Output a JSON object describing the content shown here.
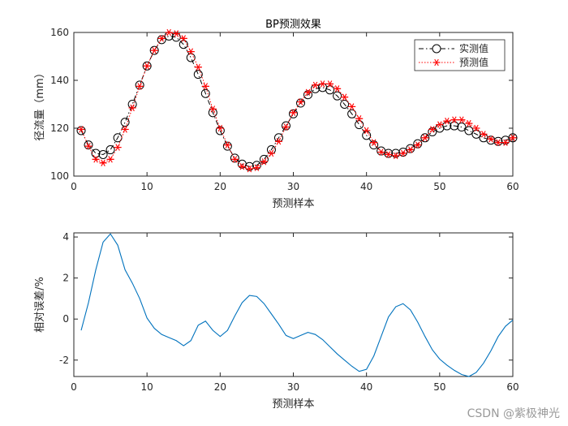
{
  "watermark": "CSDN @紫极神光",
  "chart_data": [
    {
      "type": "line",
      "title": "BP预测效果",
      "xlabel": "预测样本",
      "ylabel": "径流量（mm）",
      "xlim": [
        0,
        60
      ],
      "ylim": [
        100,
        160
      ],
      "xticks": [
        0,
        10,
        20,
        30,
        40,
        50,
        60
      ],
      "yticks": [
        100,
        120,
        140,
        160
      ],
      "legend_position": "top-right",
      "x": [
        1,
        2,
        3,
        4,
        5,
        6,
        7,
        8,
        9,
        10,
        11,
        12,
        13,
        14,
        15,
        16,
        17,
        18,
        19,
        20,
        21,
        22,
        23,
        24,
        25,
        26,
        27,
        28,
        29,
        30,
        31,
        32,
        33,
        34,
        35,
        36,
        37,
        38,
        39,
        40,
        41,
        42,
        43,
        44,
        45,
        46,
        47,
        48,
        49,
        50,
        51,
        52,
        53,
        54,
        55,
        56,
        57,
        58,
        59,
        60
      ],
      "series": [
        {
          "name": "实测值",
          "color": "#000000",
          "marker": "circle",
          "line": "dash-dot",
          "values": [
            119,
            113,
            109.5,
            109,
            111,
            116,
            122.5,
            130,
            138,
            146,
            152.5,
            157,
            158.5,
            158,
            155,
            149.5,
            142.5,
            134.5,
            126.5,
            119,
            112.5,
            107.5,
            105,
            104,
            104.5,
            107,
            111,
            116,
            121,
            126,
            130.5,
            134,
            136.5,
            137,
            136,
            133.5,
            130,
            126,
            121.5,
            117,
            113,
            110.5,
            109.5,
            109.5,
            110,
            111.5,
            113.5,
            116,
            118.5,
            120,
            121,
            121,
            120.5,
            119,
            117.5,
            116,
            115,
            114.5,
            115,
            116
          ]
        },
        {
          "name": "预测值",
          "color": "#ff0000",
          "marker": "star",
          "line": "dotted",
          "values": [
            119.5,
            112.5,
            107,
            105.5,
            107,
            112,
            119.5,
            128.5,
            137.5,
            146,
            152.5,
            157.5,
            160,
            159.5,
            157.5,
            152,
            145.5,
            137.5,
            128,
            120,
            113,
            107,
            104,
            103,
            103.5,
            106,
            109.5,
            114.5,
            120.5,
            126.5,
            131,
            135,
            138,
            138.5,
            138.5,
            136.5,
            133,
            129,
            124,
            119,
            114,
            110,
            109,
            108.5,
            109.5,
            111,
            113,
            116,
            119.5,
            121.5,
            123,
            123.5,
            123.5,
            122,
            120,
            117.5,
            115.5,
            114,
            114,
            116
          ]
        }
      ]
    },
    {
      "type": "line",
      "title": "",
      "xlabel": "预测样本",
      "ylabel": "相对误差/%",
      "xlim": [
        0,
        60
      ],
      "ylim": [
        -2.8,
        4.2
      ],
      "xticks": [
        0,
        10,
        20,
        30,
        40,
        50,
        60
      ],
      "yticks": [
        -2,
        0,
        2,
        4
      ],
      "x": [
        1,
        2,
        3,
        4,
        5,
        6,
        7,
        8,
        9,
        10,
        11,
        12,
        13,
        14,
        15,
        16,
        17,
        18,
        19,
        20,
        21,
        22,
        23,
        24,
        25,
        26,
        27,
        28,
        29,
        30,
        31,
        32,
        33,
        34,
        35,
        36,
        37,
        38,
        39,
        40,
        41,
        42,
        43,
        44,
        45,
        46,
        47,
        48,
        49,
        50,
        51,
        52,
        53,
        54,
        55,
        56,
        57,
        58,
        59,
        60
      ],
      "series": [
        {
          "name": "",
          "color": "#0072bd",
          "values": [
            -0.55,
            0.8,
            2.4,
            3.75,
            4.15,
            3.6,
            2.4,
            1.75,
            1.0,
            0.05,
            -0.45,
            -0.75,
            -0.9,
            -1.05,
            -1.3,
            -1.05,
            -0.3,
            -0.1,
            -0.55,
            -0.85,
            -0.55,
            0.15,
            0.8,
            1.15,
            1.1,
            0.75,
            0.25,
            -0.25,
            -0.8,
            -0.95,
            -0.8,
            -0.65,
            -0.75,
            -1.0,
            -1.35,
            -1.7,
            -2.0,
            -2.3,
            -2.55,
            -2.45,
            -1.8,
            -0.85,
            0.1,
            0.6,
            0.75,
            0.45,
            -0.15,
            -0.85,
            -1.5,
            -1.95,
            -2.25,
            -2.5,
            -2.7,
            -2.8,
            -2.6,
            -2.15,
            -1.55,
            -0.85,
            -0.35,
            -0.05
          ]
        }
      ]
    }
  ]
}
